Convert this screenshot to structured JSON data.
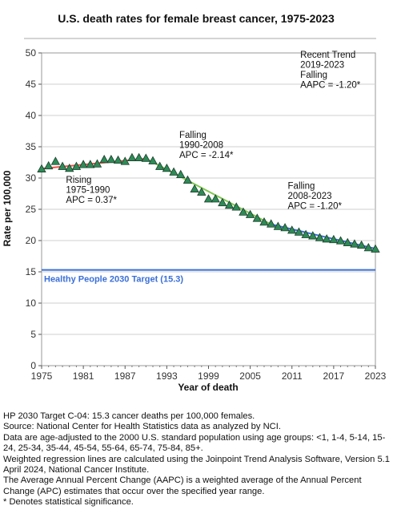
{
  "chart_data": {
    "type": "line",
    "title": "U.S. death rates for female breast cancer, 1975-2023",
    "xlabel": "Year of death",
    "ylabel": "Rate per 100,000",
    "xlim": [
      1975,
      2023
    ],
    "ylim": [
      0,
      50
    ],
    "x_ticks": [
      1975,
      1981,
      1987,
      1993,
      1999,
      2005,
      2011,
      2017,
      2023
    ],
    "y_ticks": [
      0,
      5,
      10,
      15,
      20,
      25,
      30,
      35,
      40,
      45,
      50
    ],
    "grid": true,
    "series": [
      {
        "marker": "triangle",
        "color": "#2e8b57",
        "x": [
          1975,
          1976,
          1977,
          1978,
          1979,
          1980,
          1981,
          1982,
          1983,
          1984,
          1985,
          1986,
          1987,
          1988,
          1989,
          1990,
          1991,
          1992,
          1993,
          1994,
          1995,
          1996,
          1997,
          1998,
          1999,
          2000,
          2001,
          2002,
          2003,
          2004,
          2005,
          2006,
          2007,
          2008,
          2009,
          2010,
          2011,
          2012,
          2013,
          2014,
          2015,
          2016,
          2017,
          2018,
          2019,
          2020,
          2021,
          2022,
          2023
        ],
        "values": [
          31.4,
          31.9,
          32.6,
          31.8,
          31.5,
          31.8,
          32.1,
          32.1,
          32.2,
          32.9,
          32.9,
          32.8,
          32.6,
          33.2,
          33.2,
          33.1,
          32.7,
          31.8,
          31.5,
          30.9,
          30.5,
          29.6,
          28.2,
          27.7,
          26.6,
          26.6,
          26.0,
          25.6,
          25.3,
          24.5,
          24.1,
          23.5,
          22.9,
          22.6,
          22.2,
          22.0,
          21.6,
          21.3,
          20.9,
          20.7,
          20.4,
          20.2,
          20.1,
          19.9,
          19.6,
          19.4,
          19.2,
          18.8,
          18.6
        ]
      }
    ],
    "trend_lines": [
      {
        "name": "Rising 1975-1990",
        "from": [
          1975,
          31.5
        ],
        "to": [
          1990,
          33.1
        ],
        "color": "#e8534a"
      },
      {
        "name": "Falling 1990-2008",
        "from": [
          1990,
          33.1
        ],
        "to": [
          2008,
          22.6
        ],
        "color": "#7ec850"
      },
      {
        "name": "Falling 2008-2023",
        "from": [
          2008,
          22.6
        ],
        "to": [
          2023,
          18.7
        ],
        "color": "#3a6fd8"
      }
    ],
    "reference_line": {
      "label": "Healthy People 2030 Target (15.3)",
      "value": 15.3,
      "color": "#3a6fd8"
    },
    "annotations": [
      {
        "id": "rising",
        "lines": [
          "Rising",
          "1975-1990",
          "APC =  0.37*"
        ],
        "x": 1978.5,
        "y": 29.2
      },
      {
        "id": "falling1",
        "lines": [
          "Falling",
          "1990-2008",
          "APC = -2.14*"
        ],
        "x": 1994.8,
        "y": 36.4
      },
      {
        "id": "falling2",
        "lines": [
          "Falling",
          "2008-2023",
          "APC = -1.20*"
        ],
        "x": 2010.4,
        "y": 28.3
      },
      {
        "id": "recent",
        "lines": [
          "Recent Trend",
          "2019-2023",
          "Falling",
          "AAPC = -1.20*"
        ],
        "x": 2012.2,
        "y": 49.2
      }
    ]
  },
  "footnotes": [
    "HP 2030 Target C-04: 15.3 cancer deaths per 100,000 females.",
    "Source: National Center for Health Statistics data as analyzed by NCI.",
    "Data are age-adjusted to the 2000 U.S. standard population using age groups: <1, 1-4, 5-14, 15-24, 25-34, 35-44, 45-54, 55-64, 65-74, 75-84, 85+.",
    "Weighted regression lines are calculated using the Joinpoint Trend Analysis Software, Version 5.1 April 2024, National Cancer Institute.",
    "The Average Annual Percent Change (AAPC) is a weighted average of the Annual Percent Change (APC) estimates that occur over the specified year range.",
    "* Denotes statistical significance."
  ]
}
